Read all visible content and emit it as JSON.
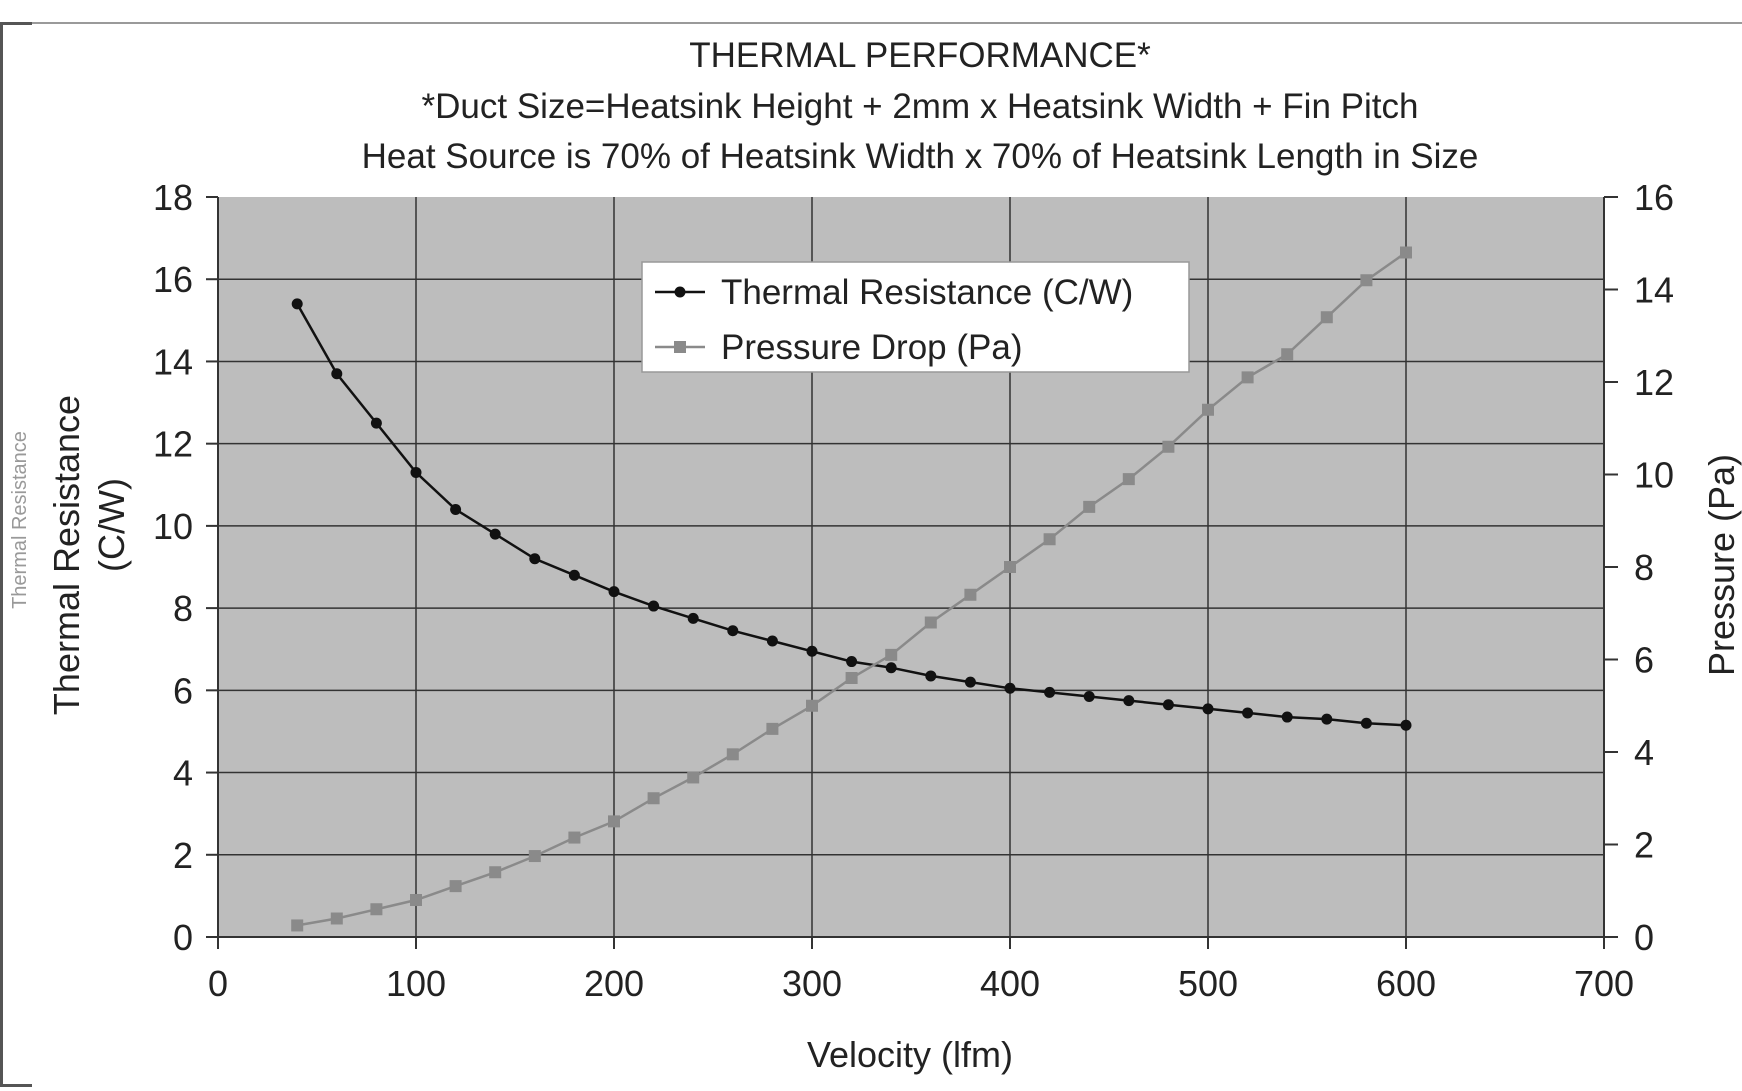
{
  "chart_data": {
    "type": "line",
    "title": "THERMAL PERFORMANCE*",
    "subtitle_lines": [
      "*Duct Size=Heatsink Height + 2mm x Heatsink Width + Fin Pitch",
      "Heat Source is 70% of Heatsink Width x 70% of Heatsink Length in Size"
    ],
    "xlabel": "Velocity (lfm)",
    "ylabel_left_line1": "Thermal Resistance",
    "ylabel_left_line2": "(C/W)",
    "ylabel_left_faint": "Thermal Resistance",
    "ylabel_right": "Pressure (Pa)",
    "xlim": [
      0,
      700
    ],
    "ylim_left": [
      0,
      18
    ],
    "ylim_right": [
      0,
      16
    ],
    "x_ticks": [
      "0",
      "100",
      "200",
      "300",
      "400",
      "500",
      "600",
      "700"
    ],
    "y_left_ticks": [
      "0",
      "2",
      "4",
      "6",
      "8",
      "10",
      "12",
      "14",
      "16",
      "18"
    ],
    "y_right_ticks": [
      "0",
      "2",
      "4",
      "6",
      "8",
      "10",
      "12",
      "14",
      "16"
    ],
    "grid": true,
    "legend_position": "top-center",
    "plot_background": "#bdbdbd",
    "x": [
      40,
      60,
      80,
      100,
      120,
      140,
      160,
      180,
      200,
      220,
      240,
      260,
      280,
      300,
      320,
      340,
      360,
      380,
      400,
      420,
      440,
      460,
      480,
      500,
      520,
      540,
      560,
      580,
      600
    ],
    "series": [
      {
        "name": "Thermal Resistance (C/W)",
        "axis": "left",
        "color": "#111111",
        "marker": "circle",
        "values": [
          15.4,
          13.7,
          12.5,
          11.3,
          10.4,
          9.8,
          9.2,
          8.8,
          8.4,
          8.05,
          7.75,
          7.45,
          7.2,
          6.95,
          6.7,
          6.55,
          6.35,
          6.2,
          6.05,
          5.95,
          5.85,
          5.75,
          5.65,
          5.55,
          5.45,
          5.35,
          5.3,
          5.2,
          5.15
        ]
      },
      {
        "name": "Pressure Drop (Pa)",
        "axis": "right",
        "color": "#8a8a8a",
        "marker": "square",
        "values": [
          0.25,
          0.4,
          0.6,
          0.8,
          1.1,
          1.4,
          1.75,
          2.15,
          2.5,
          3.0,
          3.45,
          3.95,
          4.5,
          5.0,
          5.6,
          6.1,
          6.8,
          7.4,
          8.0,
          8.6,
          9.3,
          9.9,
          10.6,
          11.4,
          12.1,
          12.6,
          13.4,
          14.2,
          14.8
        ]
      }
    ]
  }
}
